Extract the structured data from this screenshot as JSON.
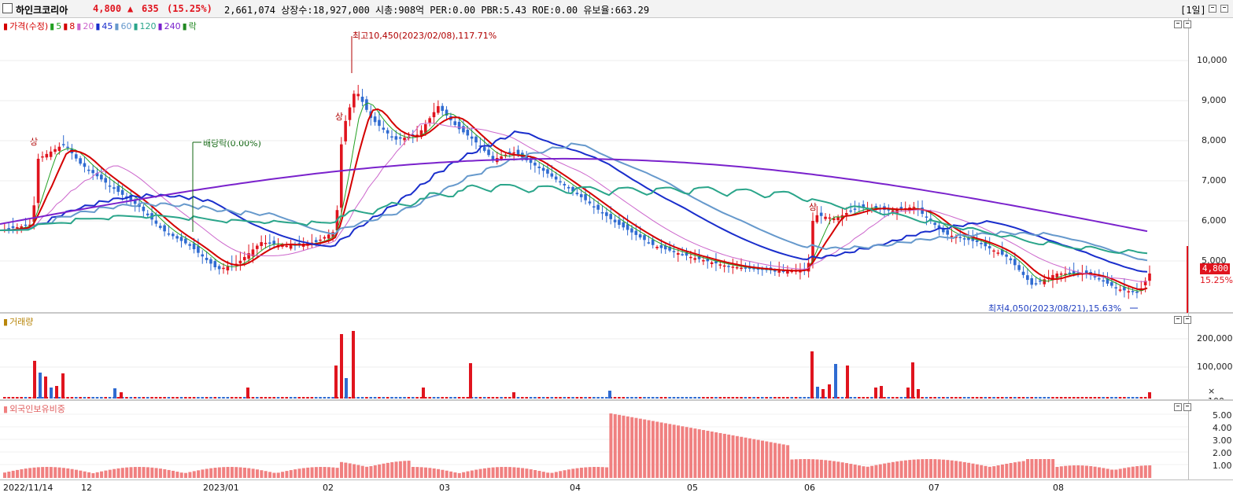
{
  "header": {
    "name": "하인크코리아",
    "price": "4,800",
    "change_arrow": "▲",
    "change": "635",
    "change_pct": "(15.25%)",
    "info": "2,661,074  상장수:18,927,000 시총:908억  PER:0.00  PBR:5.43  ROE:0.00  유보율:663.29",
    "period": "[1일]"
  },
  "price_legend": [
    {
      "label": "가격(수정)",
      "color": "#d40000"
    },
    {
      "label": "5",
      "color": "#22a022"
    },
    {
      "label": "8",
      "color": "#d40000"
    },
    {
      "label": "20",
      "color": "#cc66cc"
    },
    {
      "label": "45",
      "color": "#1a2ecc"
    },
    {
      "label": "60",
      "color": "#6699cc"
    },
    {
      "label": "120",
      "color": "#2aa58a"
    },
    {
      "label": "240",
      "color": "#7a22cc"
    },
    {
      "label": "락",
      "color": "#228822"
    }
  ],
  "volume_legend": {
    "label": "거래량",
    "color": "#b8860b"
  },
  "foreign_legend": {
    "label": "외국인보유비중",
    "color": "#f08080"
  },
  "annotations": {
    "high": "최고10,450(2023/02/08),117.71%",
    "low": "최저4,050(2023/08/21),15.63%",
    "dividend": "배당락(0.00%)",
    "sang1": "상",
    "sang2": "상",
    "sang3": "상"
  },
  "price_axis": [
    "10,000",
    "9,000",
    "8,000",
    "7,000",
    "6,000",
    "5,000"
  ],
  "current_price_tag": "4,800",
  "current_pct_tag": "15.25%",
  "volume_axis": [
    "200,000",
    "100,000",
    "× 100"
  ],
  "foreign_axis": [
    "5.00",
    "4.00",
    "3.00",
    "2.00",
    "1.00"
  ],
  "date_labels": [
    "2022/11/14",
    "12",
    "2023/01",
    "02",
    "03",
    "04",
    "05",
    "06",
    "07",
    "08"
  ],
  "chart_data": {
    "type": "candlestick",
    "price_range": [
      4050,
      10450
    ],
    "ma_periods": [
      5,
      8,
      20,
      45,
      60,
      120,
      240
    ],
    "key_points": [
      {
        "date": "2023/02/08",
        "high": 10450,
        "pct": 117.71
      },
      {
        "date": "2023/08/21",
        "low": 4050,
        "pct": 15.63
      }
    ],
    "last": {
      "price": 4800,
      "change": 635,
      "change_pct": 15.25,
      "volume": 2661074
    }
  },
  "colors": {
    "up": "#e0141e",
    "down": "#2f6bd1",
    "grid": "#e6e6e6"
  }
}
